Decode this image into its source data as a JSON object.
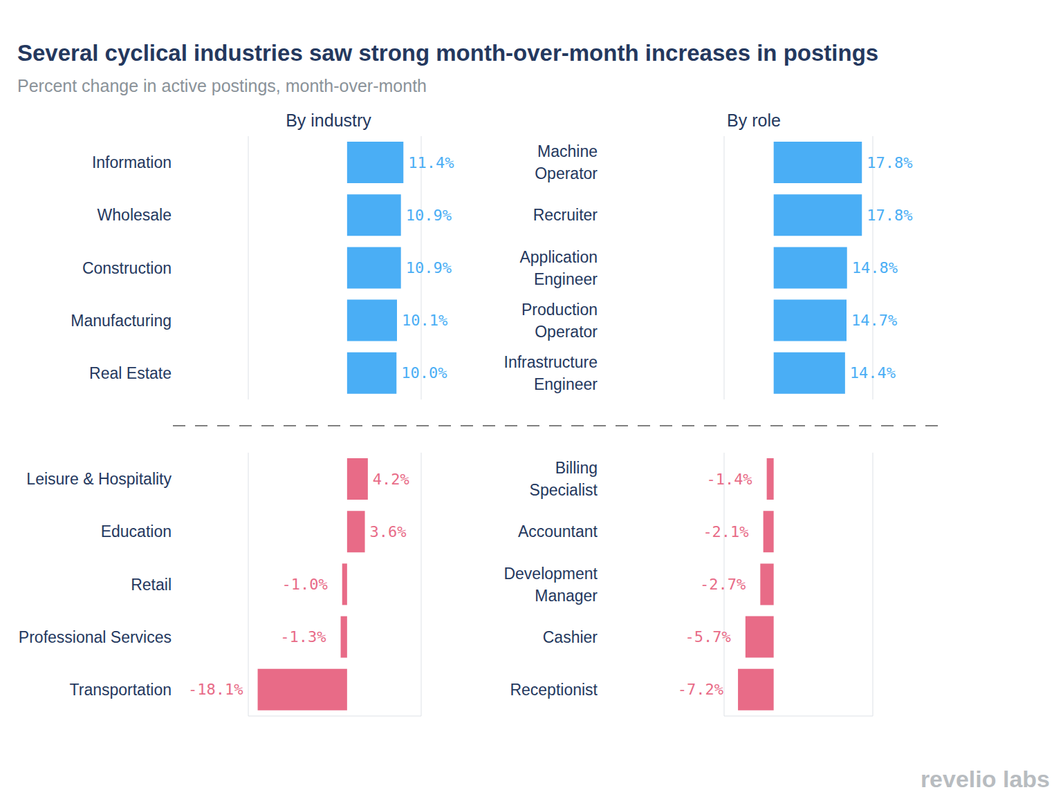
{
  "title": "Several cyclical industries saw strong month-over-month increases in postings",
  "subtitle": "Percent change in active postings, month-over-month",
  "credit": "revelio labs",
  "chart_data": [
    {
      "type": "bar",
      "orientation": "horizontal",
      "title": "By industry",
      "categories": [
        "Information",
        "Wholesale",
        "Construction",
        "Manufacturing",
        "Real Estate",
        "Leisure & Hospitality",
        "Education",
        "Retail",
        "Professional Services",
        "Transportation"
      ],
      "values": [
        11.4,
        10.9,
        10.9,
        10.1,
        10.0,
        4.2,
        3.6,
        -1.0,
        -1.3,
        -18.1
      ],
      "value_labels": [
        "11.4%",
        "10.9%",
        "10.9%",
        "10.1%",
        "10.0%",
        "4.2%",
        "3.6%",
        "-1.0%",
        "-1.3%",
        "-18.1%"
      ],
      "colors": [
        "#4aaef5",
        "#4aaef5",
        "#4aaef5",
        "#4aaef5",
        "#4aaef5",
        "#e86b87",
        "#e86b87",
        "#e86b87",
        "#e86b87",
        "#e86b87"
      ],
      "xlim": [
        -20,
        15
      ],
      "xticks": [
        0
      ],
      "grid": true,
      "data_labels": true,
      "tick_labels": "y"
    },
    {
      "type": "bar",
      "orientation": "horizontal",
      "title": "By role",
      "categories": [
        "Machine Operator",
        "Recruiter",
        "Application Engineer",
        "Production Operator",
        "Infrastructure Engineer",
        "Billing Specialist",
        "Accountant",
        "Development Manager",
        "Cashier",
        "Receptionist"
      ],
      "values": [
        17.8,
        17.8,
        14.8,
        14.7,
        14.4,
        -1.4,
        -2.1,
        -2.7,
        -5.7,
        -7.2
      ],
      "value_labels": [
        "17.8%",
        "17.8%",
        "14.8%",
        "14.7%",
        "14.4%",
        "-1.4%",
        "-2.1%",
        "-2.7%",
        "-5.7%",
        "-7.2%"
      ],
      "colors": [
        "#4aaef5",
        "#4aaef5",
        "#4aaef5",
        "#4aaef5",
        "#4aaef5",
        "#e86b87",
        "#e86b87",
        "#e86b87",
        "#e86b87",
        "#e86b87"
      ],
      "xlim": [
        -10,
        20
      ],
      "xticks": [
        0
      ],
      "grid": true,
      "data_labels": true,
      "tick_labels": "y"
    }
  ]
}
